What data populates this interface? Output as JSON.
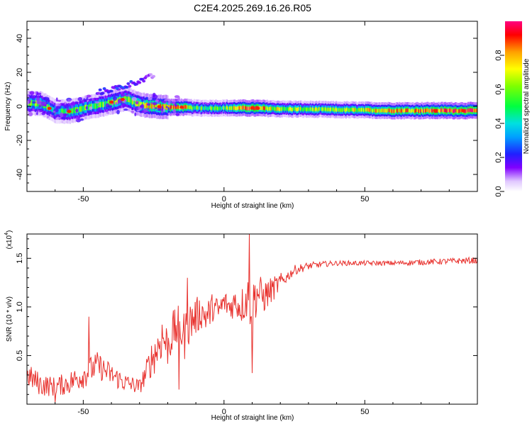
{
  "title": "C2E4.2025.269.16.26.R05",
  "colorbar_label": "Normalized spectral amplitude",
  "chart_data": [
    {
      "type": "heatmap",
      "title": "C2E4.2025.269.16.26.R05",
      "xlabel": "Height of straight line (km)",
      "ylabel": "Frequency (Hz)",
      "xlim": [
        -70,
        90
      ],
      "ylim": [
        -50,
        50
      ],
      "xticks": [
        -50,
        0,
        50
      ],
      "yticks": [
        40,
        20,
        0,
        -20,
        -40
      ],
      "colorbar": {
        "label": "Normalized spectral amplitude",
        "range": [
          0.0,
          1.0
        ],
        "ticks": [
          0.0,
          0.2,
          0.4,
          0.6,
          0.8
        ]
      },
      "ridge": {
        "x": [
          -70,
          -65,
          -60,
          -55,
          -50,
          -45,
          -40,
          -35,
          -30,
          -25,
          -20,
          -15,
          -10,
          -5,
          0,
          10,
          20,
          40,
          60,
          90
        ],
        "y": [
          2,
          1.5,
          -3,
          -3,
          -1,
          0.5,
          2.5,
          4.5,
          1,
          0,
          -0.5,
          -0.5,
          -1,
          -1,
          -1,
          -1,
          -1.5,
          -2,
          -2.5,
          -2.5
        ],
        "amplitude": [
          0.5,
          0.6,
          0.45,
          0.5,
          0.5,
          0.55,
          0.6,
          0.6,
          0.6,
          0.75,
          0.8,
          0.85,
          0.5,
          0.55,
          0.55,
          0.95,
          0.6,
          0.6,
          0.8,
          0.95
        ]
      },
      "secondary_branch": {
        "x": [
          -45,
          -40,
          -35,
          -32,
          -28,
          -25
        ],
        "y": [
          8,
          10,
          12,
          14,
          16,
          18
        ],
        "amplitude": [
          0.2,
          0.2,
          0.25,
          0.2,
          0.15,
          0.1
        ]
      }
    },
    {
      "type": "line",
      "xlabel": "Height of straight line (km)",
      "ylabel": "SNR (10 * v/v)",
      "yscale_label": "(x10",
      "yscale_exponent": "4",
      "color": "#e8322e",
      "xlim": [
        -70,
        90
      ],
      "ylim": [
        0,
        1.75
      ],
      "xticks": [
        -50,
        0,
        50
      ],
      "yticks": [
        1.5,
        1.0,
        0.5
      ],
      "x": [
        -70,
        -65,
        -60,
        -55,
        -50,
        -45,
        -40,
        -35,
        -30,
        -28,
        -26,
        -24,
        -22,
        -20,
        -18,
        -16,
        -14,
        -12,
        -10,
        -8,
        -6,
        -4,
        -2,
        0,
        2,
        4,
        6,
        8,
        9,
        10,
        12,
        14,
        16,
        18,
        20,
        22,
        25,
        30,
        35,
        40,
        50,
        60,
        70,
        80,
        90
      ],
      "y": [
        0.3,
        0.2,
        0.18,
        0.22,
        0.3,
        0.4,
        0.3,
        0.22,
        0.18,
        0.3,
        0.45,
        0.55,
        0.7,
        0.6,
        0.75,
        0.8,
        0.7,
        0.85,
        0.9,
        0.95,
        0.9,
        1.0,
        0.95,
        1.05,
        1.0,
        1.05,
        1.0,
        1.1,
        1.05,
        1.05,
        1.15,
        1.1,
        1.15,
        1.2,
        1.25,
        1.3,
        1.38,
        1.42,
        1.44,
        1.45,
        1.45,
        1.45,
        1.46,
        1.47,
        1.48
      ],
      "noise": [
        0.12,
        0.12,
        0.1,
        0.12,
        0.14,
        0.14,
        0.12,
        0.1,
        0.08,
        0.12,
        0.18,
        0.22,
        0.25,
        0.22,
        0.22,
        0.22,
        0.25,
        0.22,
        0.2,
        0.18,
        0.18,
        0.15,
        0.15,
        0.12,
        0.15,
        0.15,
        0.18,
        0.25,
        0.3,
        0.3,
        0.2,
        0.18,
        0.15,
        0.12,
        0.1,
        0.06,
        0.05,
        0.04,
        0.03,
        0.025,
        0.025,
        0.025,
        0.03,
        0.03,
        0.035
      ],
      "spikes": [
        [
          -48,
          0.9
        ],
        [
          -13,
          1.3
        ],
        [
          9,
          1.75
        ],
        [
          10,
          0.32
        ],
        [
          -16,
          0.15
        ],
        [
          -60,
          0.0
        ]
      ]
    }
  ]
}
